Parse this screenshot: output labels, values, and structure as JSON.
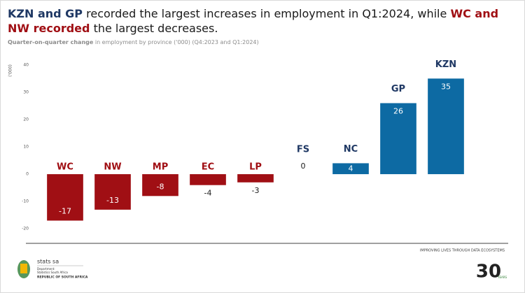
{
  "chart_data": {
    "type": "bar",
    "title": [
      "KZN and GP",
      "recorded the largest increases in employment in Q1:2024, while",
      "WC and NW recorded",
      "the largest decreases."
    ],
    "subtitle": [
      "Quarter-on-quarter change",
      "in employment by province ('000) (Q4:2023 and Q1:2024)"
    ],
    "y_label": "('000)",
    "categories": [
      "WC",
      "NW",
      "MP",
      "EC",
      "LP",
      "FS",
      "NC",
      "GP",
      "KZN"
    ],
    "values": [
      -17,
      -13,
      -8,
      -4,
      -3,
      0,
      4,
      26,
      35
    ],
    "negative_color": "#a00f14",
    "positive_color": "#0d6aa3",
    "ylim": [
      -22,
      42
    ],
    "yticks": [
      -20,
      -10,
      0,
      10,
      20,
      30,
      40
    ],
    "grid": false
  },
  "footer": {
    "tagline": "IMPROVING LIVES THROUGH DATA ECOSYSTEMS",
    "logo": "stats sa",
    "department": "Department:",
    "dept_name": "Statistics South Africa",
    "republic": "REPUBLIC OF SOUTH AFRICA",
    "anniversary": "30",
    "years": "YEARS"
  }
}
